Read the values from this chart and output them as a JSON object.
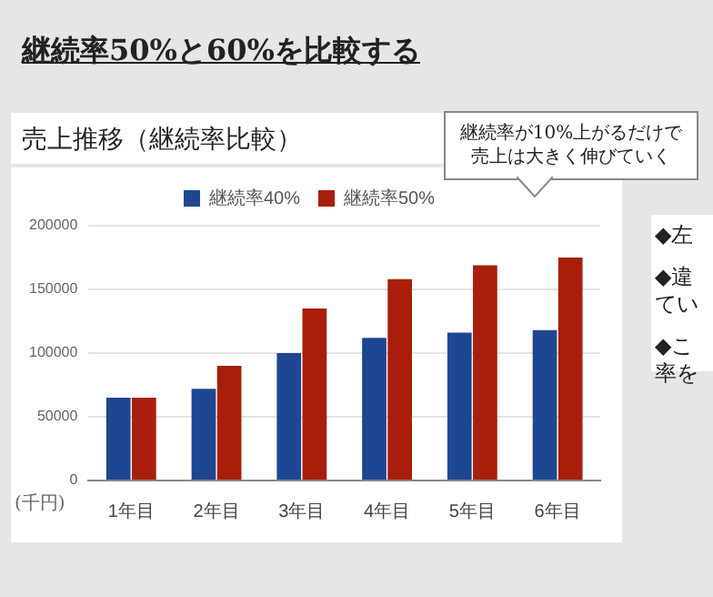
{
  "chart_data": {
    "type": "bar",
    "title": "継続率50%と60%を比較する",
    "subtitle": "売上推移（継続率比較）",
    "ylabel": "(千円)",
    "categories": [
      "1年目",
      "2年目",
      "3年目",
      "4年目",
      "5年目",
      "6年目"
    ],
    "series": [
      {
        "name": "継続率40%",
        "color": "#1f4690",
        "values": [
          65000,
          72000,
          100000,
          112000,
          116000,
          118000
        ]
      },
      {
        "name": "継続率50%",
        "color": "#a81e0a",
        "values": [
          65000,
          90000,
          135000,
          158000,
          169000,
          175000
        ]
      }
    ],
    "ylim": [
      0,
      200000
    ],
    "yticks": [
      0,
      50000,
      100000,
      150000,
      200000
    ],
    "grid": "y",
    "legend": "top",
    "annotations": [
      "継続率が10%上がるだけで売上は大きく伸びていく",
      "◆左",
      "◆違てい",
      "◆こ率を"
    ]
  }
}
